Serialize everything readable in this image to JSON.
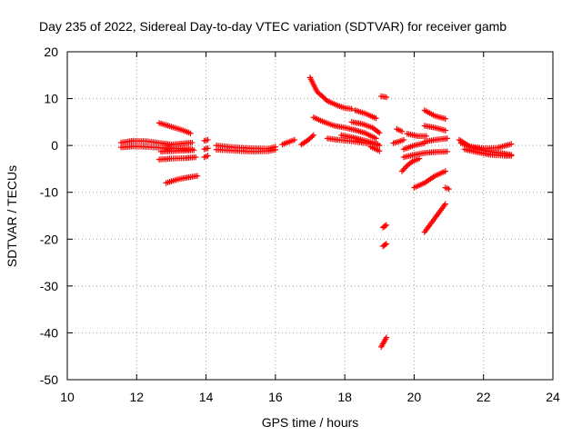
{
  "chart_data": {
    "type": "scatter",
    "title": "Day 235 of 2022, Sidereal Day-to-day VTEC variation (SDTVAR) for receiver gamb",
    "xlabel": "GPS time / hours",
    "ylabel": "SDTVAR / TECUs",
    "xlim": [
      10,
      24
    ],
    "ylim": [
      -50,
      20
    ],
    "x_ticks": [
      10,
      12,
      14,
      16,
      18,
      20,
      22,
      24
    ],
    "y_ticks": [
      -50,
      -40,
      -30,
      -20,
      -10,
      0,
      10,
      20
    ],
    "x_tick_labels": [
      "10",
      "12",
      "14",
      "16",
      "18",
      "20",
      "22",
      "24"
    ],
    "y_tick_labels": [
      "-50",
      "-40",
      "-30",
      "-20",
      "-10",
      "0",
      "10",
      "20"
    ],
    "grid": true,
    "marker": "plus",
    "color": "#ff0000",
    "series": [
      {
        "name": "seg01",
        "x": [
          11.55,
          11.9,
          12.3,
          12.7,
          13.0,
          13.3,
          13.6
        ],
        "y": [
          0.6,
          1.0,
          0.9,
          0.5,
          0.2,
          0.4,
          0.6
        ]
      },
      {
        "name": "seg02",
        "x": [
          11.55,
          11.9,
          12.3,
          12.7,
          13.1,
          13.6
        ],
        "y": [
          -0.4,
          -0.2,
          -0.3,
          -0.5,
          -0.6,
          -0.8
        ]
      },
      {
        "name": "seg03",
        "x": [
          12.65,
          13.0,
          13.35,
          13.55
        ],
        "y": [
          4.8,
          4.0,
          3.2,
          2.6
        ]
      },
      {
        "name": "seg04",
        "x": [
          12.7,
          13.0,
          13.3,
          13.65
        ],
        "y": [
          -1.3,
          -1.2,
          -1.1,
          -1.0
        ]
      },
      {
        "name": "seg05",
        "x": [
          12.65,
          13.0,
          13.4,
          13.7
        ],
        "y": [
          -3.0,
          -2.8,
          -2.7,
          -2.5
        ]
      },
      {
        "name": "seg06",
        "x": [
          12.85,
          13.2,
          13.5,
          13.75
        ],
        "y": [
          -8.0,
          -7.2,
          -6.8,
          -6.5
        ]
      },
      {
        "name": "seg07",
        "x": [
          13.95,
          14.05
        ],
        "y": [
          1.0,
          1.2
        ]
      },
      {
        "name": "seg08",
        "x": [
          13.95,
          14.05
        ],
        "y": [
          -0.8,
          -0.6
        ]
      },
      {
        "name": "seg09",
        "x": [
          13.95,
          14.05
        ],
        "y": [
          -2.5,
          -2.2
        ]
      },
      {
        "name": "seg10",
        "x": [
          14.3,
          14.8,
          15.3,
          15.8,
          16.0
        ],
        "y": [
          0.0,
          -0.4,
          -0.6,
          -0.7,
          -0.3
        ]
      },
      {
        "name": "seg11",
        "x": [
          14.3,
          14.8,
          15.3,
          15.8,
          16.0
        ],
        "y": [
          -0.9,
          -1.1,
          -1.3,
          -1.2,
          -0.9
        ]
      },
      {
        "name": "seg12",
        "x": [
          16.2,
          16.4,
          16.55
        ],
        "y": [
          0.2,
          0.8,
          1.2
        ]
      },
      {
        "name": "seg13",
        "x": [
          16.75,
          16.95,
          17.1
        ],
        "y": [
          0.2,
          1.2,
          2.2
        ]
      },
      {
        "name": "seg14",
        "x": [
          17.0,
          17.2,
          17.5,
          17.8,
          18.0,
          18.2
        ],
        "y": [
          14.5,
          11.5,
          9.5,
          8.5,
          8.0,
          7.8
        ]
      },
      {
        "name": "seg15",
        "x": [
          17.1,
          17.4,
          17.7,
          18.0,
          18.3,
          18.6,
          18.9
        ],
        "y": [
          6.0,
          5.0,
          4.2,
          3.8,
          3.3,
          2.6,
          1.5
        ]
      },
      {
        "name": "seg16",
        "x": [
          18.3,
          18.6,
          18.9
        ],
        "y": [
          7.5,
          6.8,
          5.8
        ]
      },
      {
        "name": "seg17",
        "x": [
          18.2,
          18.5,
          18.8,
          19.0
        ],
        "y": [
          5.0,
          4.6,
          3.8,
          2.7
        ]
      },
      {
        "name": "seg18",
        "x": [
          17.5,
          17.8,
          18.2,
          18.6,
          18.95
        ],
        "y": [
          1.5,
          1.2,
          0.9,
          0.5,
          0.3
        ]
      },
      {
        "name": "seg19",
        "x": [
          17.9,
          18.3,
          18.7,
          19.0
        ],
        "y": [
          2.2,
          1.6,
          0.8,
          0.0
        ]
      },
      {
        "name": "seg20",
        "x": [
          18.75,
          18.9,
          19.0
        ],
        "y": [
          -0.3,
          -0.8,
          -1.2
        ]
      },
      {
        "name": "seg21",
        "x": [
          19.05,
          19.2
        ],
        "y": [
          10.5,
          10.3
        ]
      },
      {
        "name": "seg22",
        "x": [
          19.5,
          19.65
        ],
        "y": [
          3.5,
          3.0
        ]
      },
      {
        "name": "seg23",
        "x": [
          19.4,
          19.55,
          19.7
        ],
        "y": [
          0.5,
          0.8,
          1.2
        ]
      },
      {
        "name": "seg24",
        "x": [
          19.8,
          20.1,
          20.35
        ],
        "y": [
          2.5,
          2.0,
          2.0
        ]
      },
      {
        "name": "seg25",
        "x": [
          20.3,
          20.6,
          20.9
        ],
        "y": [
          7.5,
          6.3,
          5.7
        ]
      },
      {
        "name": "seg26",
        "x": [
          20.3,
          20.6,
          20.9
        ],
        "y": [
          4.2,
          3.8,
          3.2
        ]
      },
      {
        "name": "seg27",
        "x": [
          20.3,
          20.6,
          20.95
        ],
        "y": [
          0.8,
          1.2,
          1.5
        ]
      },
      {
        "name": "seg28",
        "x": [
          19.7,
          20.0,
          20.3,
          20.6,
          20.95
        ],
        "y": [
          -2.5,
          -2.0,
          -1.6,
          -1.4,
          -1.3
        ]
      },
      {
        "name": "seg29",
        "x": [
          19.7,
          20.0,
          20.3
        ],
        "y": [
          -0.8,
          0.0,
          0.5
        ]
      },
      {
        "name": "seg30",
        "x": [
          19.65,
          19.8,
          19.95,
          20.15
        ],
        "y": [
          -5.5,
          -4.3,
          -3.4,
          -2.8
        ]
      },
      {
        "name": "seg31",
        "x": [
          20.0,
          20.3,
          20.6,
          20.9
        ],
        "y": [
          -9.0,
          -8.0,
          -6.5,
          -5.5
        ]
      },
      {
        "name": "seg32",
        "x": [
          20.9,
          21.0
        ],
        "y": [
          -9.0,
          -9.3
        ]
      },
      {
        "name": "seg33",
        "x": [
          20.3,
          20.6,
          20.9
        ],
        "y": [
          -18.5,
          -15.5,
          -12.5
        ]
      },
      {
        "name": "seg34",
        "x": [
          19.1,
          19.2
        ],
        "y": [
          -17.5,
          -17.0
        ]
      },
      {
        "name": "seg35",
        "x": [
          19.1,
          19.2
        ],
        "y": [
          -21.5,
          -21.0
        ]
      },
      {
        "name": "seg36",
        "x": [
          19.05,
          19.2
        ],
        "y": [
          -43.0,
          -41.0
        ]
      },
      {
        "name": "seg37",
        "x": [
          21.3,
          21.6,
          22.0,
          22.4,
          22.8
        ],
        "y": [
          1.2,
          -0.2,
          -0.6,
          -0.5,
          0.3
        ]
      },
      {
        "name": "seg38",
        "x": [
          21.35,
          21.7,
          22.1,
          22.5,
          22.8
        ],
        "y": [
          0.5,
          -0.5,
          -1.2,
          -1.6,
          -2.0
        ]
      },
      {
        "name": "seg39",
        "x": [
          21.45,
          21.8,
          22.2,
          22.6,
          22.8
        ],
        "y": [
          -0.8,
          -1.4,
          -2.0,
          -2.2,
          -2.2
        ]
      }
    ]
  }
}
